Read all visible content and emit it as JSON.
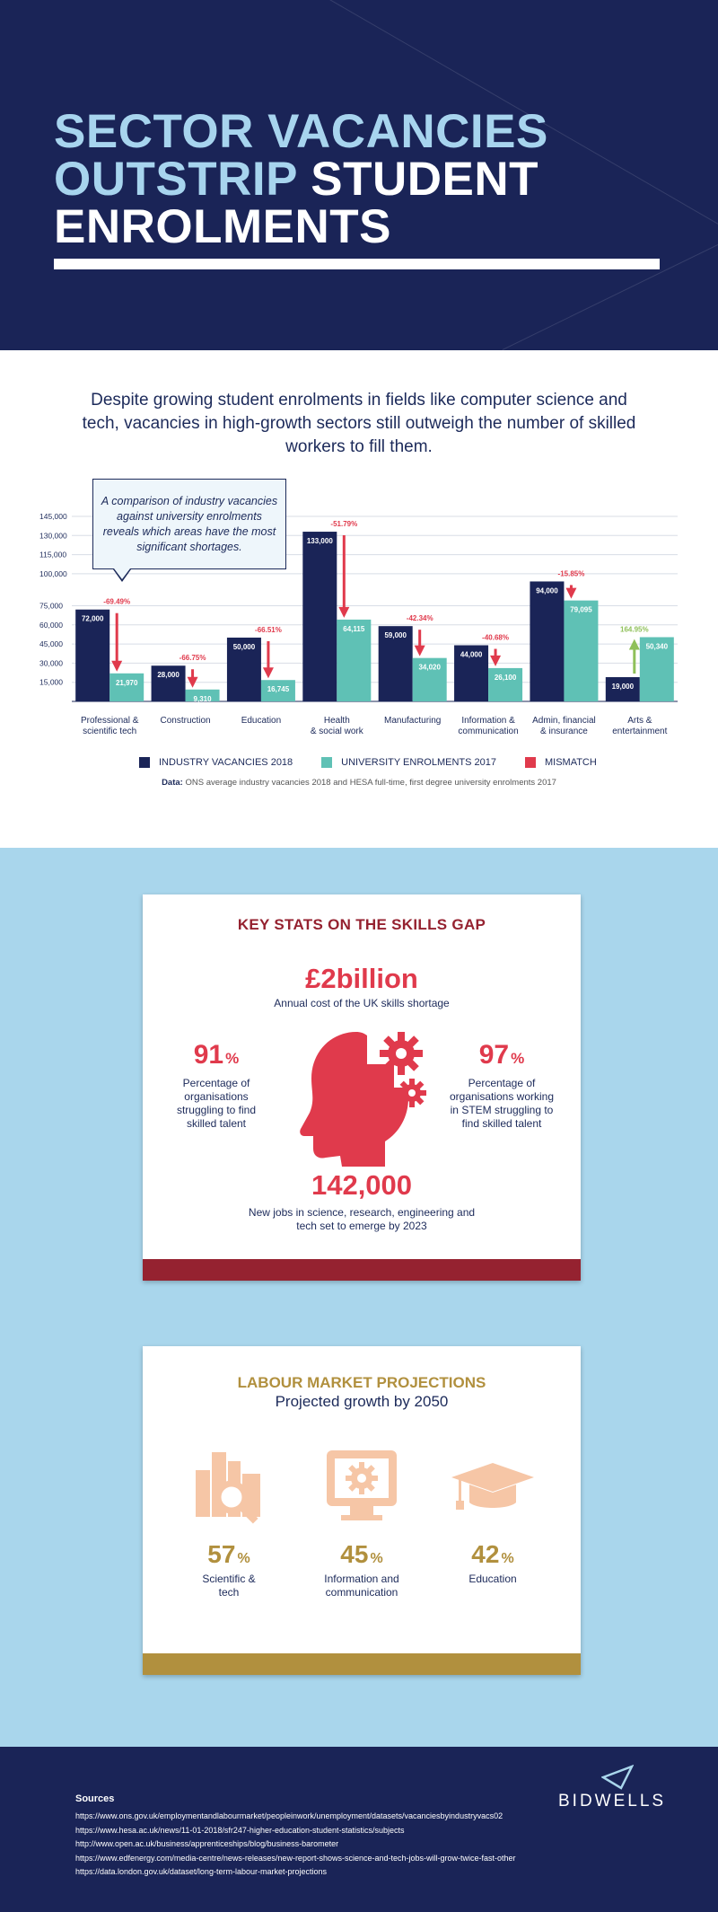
{
  "header": {
    "title_line1": "SECTOR VACANCIES",
    "title_line2a": "OUTSTRIP ",
    "title_line2b": "STUDENT",
    "title_line3": "ENROLMENTS"
  },
  "intro": "Despite growing student enrolments in fields like computer science and tech, vacancies in high-growth sectors still outweigh the number of skilled workers to fill them.",
  "callout": "A comparison of industry vacancies against university enrolments reveals which areas have the most significant shortages.",
  "colors": {
    "navy": "#1a2457",
    "teal": "#5fc1b5",
    "red": "#e03a4c",
    "green": "#8fc05a",
    "light_blue": "#a9d6ec",
    "maroon": "#952230",
    "gold": "#b1903e"
  },
  "chart_data": {
    "type": "bar",
    "title": "",
    "xlabel": "",
    "ylabel": "",
    "ylim": [
      0,
      145000
    ],
    "yticks": [
      "15,000",
      "30,000",
      "45,000",
      "60,000",
      "75,000",
      "100,000",
      "115,000",
      "130,000",
      "145,000"
    ],
    "ytick_values": [
      15000,
      30000,
      45000,
      60000,
      75000,
      100000,
      115000,
      130000,
      145000
    ],
    "categories": [
      [
        "Professional &",
        "scientific tech"
      ],
      [
        "Construction"
      ],
      [
        "Education"
      ],
      [
        "Health",
        "& social work"
      ],
      [
        "Manufacturing"
      ],
      [
        "Information &",
        "communication"
      ],
      [
        "Admin, financial",
        "& insurance"
      ],
      [
        "Arts &",
        "entertainment"
      ]
    ],
    "series": [
      {
        "name": "INDUSTRY VACANCIES 2018",
        "values": [
          72000,
          28000,
          50000,
          133000,
          59000,
          44000,
          94000,
          19000
        ],
        "labels": [
          "72,000",
          "28,000",
          "50,000",
          "133,000",
          "59,000",
          "44,000",
          "94,000",
          "19,000"
        ]
      },
      {
        "name": "UNIVERSITY ENROLMENTS 2017",
        "values": [
          21970,
          9310,
          16745,
          64115,
          34020,
          26100,
          79095,
          50340
        ],
        "labels": [
          "21,970",
          "9,310",
          "16,745",
          "64,115",
          "34,020",
          "26,100",
          "79,095",
          "50,340"
        ]
      }
    ],
    "mismatch": [
      "-69.49%",
      "-66.75%",
      "-66.51%",
      "-51.79%",
      "-42.34%",
      "-40.68%",
      "-15.85%",
      "164.95%"
    ],
    "mismatch_label": "MISMATCH",
    "legend_position": "bottom"
  },
  "chart_note_bold": "Data:",
  "chart_note": " ONS average industry vacancies 2018 and HESA full-time, first degree university enrolments 2017",
  "key_stats": {
    "title": "KEY STATS ON THE SKILLS GAP",
    "cost_value": "£2billion",
    "cost_label": "Annual cost of the UK skills shortage",
    "left_value": "91",
    "left_unit": "%",
    "left_label": "Percentage of organisations struggling to find skilled talent",
    "right_value": "97",
    "right_unit": "%",
    "right_label": "Percentage of organisations working in STEM struggling to find skilled talent",
    "jobs_value": "142,000",
    "jobs_label": "New jobs in science, research, engineering and tech set to emerge by 2023"
  },
  "projections": {
    "title": "LABOUR MARKET PROJECTIONS",
    "subtitle": "Projected growth by 2050",
    "items": [
      {
        "value": "57",
        "unit": "%",
        "label": "Scientific & tech",
        "icon": "city-magnifier-icon"
      },
      {
        "value": "45",
        "unit": "%",
        "label": "Information and communication",
        "icon": "monitor-gear-icon"
      },
      {
        "value": "42",
        "unit": "%",
        "label": "Education",
        "icon": "graduation-cap-icon"
      }
    ]
  },
  "footer": {
    "sources_title": "Sources",
    "sources": [
      "https://www.ons.gov.uk/employmentandlabourmarket/peopleinwork/unemployment/datasets/vacanciesbyindustryvacs02",
      "https://www.hesa.ac.uk/news/11-01-2018/sfr247-higher-education-student-statistics/subjects",
      "http://www.open.ac.uk/business/apprenticeships/blog/business-barometer",
      "https://www.edfenergy.com/media-centre/news-releases/new-report-shows-science-and-tech-jobs-will-grow-twice-fast-other",
      "https://data.london.gov.uk/dataset/long-term-labour-market-projections"
    ],
    "brand": "BIDWELLS"
  }
}
